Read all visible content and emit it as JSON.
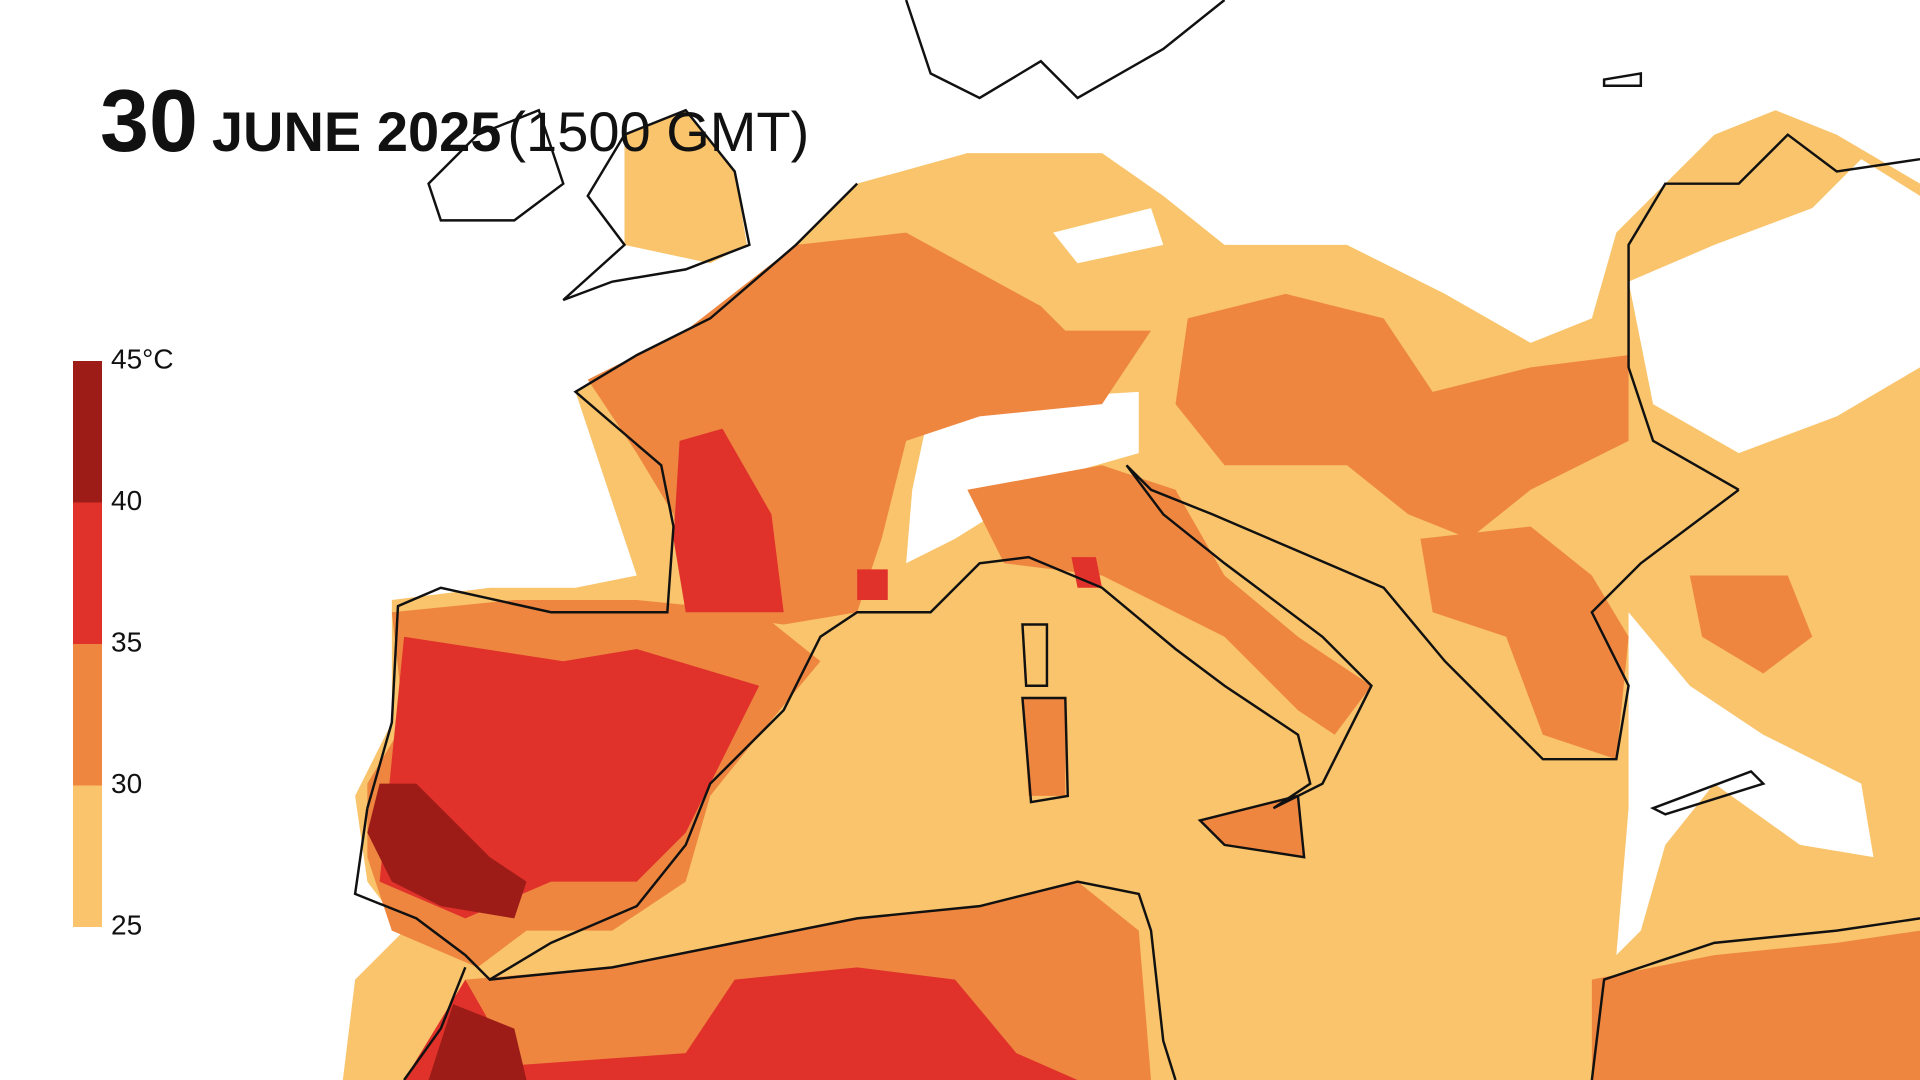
{
  "header": {
    "day": "30",
    "month_year": "JUNE 2025",
    "time": "(1500 GMT)"
  },
  "legend": {
    "ticks": [
      {
        "value": 45,
        "label": "45°C"
      },
      40,
      35,
      30,
      25
    ],
    "colors": [
      "#9e1c18",
      "#e0322a",
      "#ee8640",
      "#f9c46b"
    ]
  }
}
